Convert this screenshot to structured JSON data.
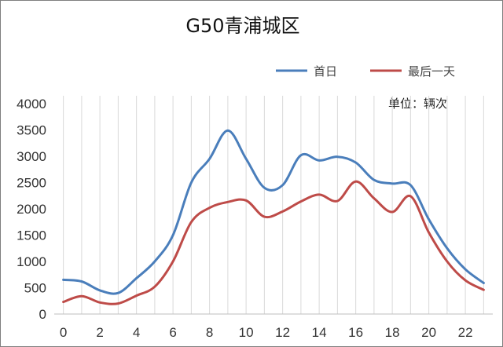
{
  "chart_data": {
    "type": "line",
    "title": "G50青浦城区",
    "unit_label": "单位：辆次",
    "xlabel": "",
    "ylabel": "",
    "x": [
      0,
      1,
      2,
      3,
      4,
      5,
      6,
      7,
      8,
      9,
      10,
      11,
      12,
      13,
      14,
      15,
      16,
      17,
      18,
      19,
      20,
      21,
      22,
      23
    ],
    "x_tick_labels": [
      "0",
      "2",
      "4",
      "6",
      "8",
      "10",
      "12",
      "14",
      "16",
      "18",
      "20",
      "22"
    ],
    "x_tick_values": [
      0,
      2,
      4,
      6,
      8,
      10,
      12,
      14,
      16,
      18,
      20,
      22
    ],
    "xlim": [
      -0.5,
      23.5
    ],
    "ylim": [
      0,
      4000
    ],
    "y_tick_values": [
      0,
      500,
      1000,
      1500,
      2000,
      2500,
      3000,
      3500,
      4000
    ],
    "y_tick_labels": [
      "0",
      "500",
      "1000",
      "1500",
      "2000",
      "2500",
      "3000",
      "3500",
      "4000"
    ],
    "grid": "vertical",
    "legend_position": "top-right",
    "series": [
      {
        "name": "首日",
        "color": "#4a7ebb",
        "values": [
          650,
          620,
          450,
          400,
          680,
          1000,
          1500,
          2500,
          2950,
          3490,
          2950,
          2400,
          2450,
          3020,
          2920,
          2990,
          2880,
          2550,
          2480,
          2450,
          1800,
          1250,
          850,
          590
        ]
      },
      {
        "name": "最后一天",
        "color": "#be4b48",
        "values": [
          230,
          340,
          220,
          200,
          350,
          520,
          1000,
          1750,
          2020,
          2130,
          2160,
          1850,
          1950,
          2140,
          2270,
          2150,
          2520,
          2200,
          1940,
          2240,
          1550,
          1000,
          640,
          460
        ]
      }
    ]
  }
}
